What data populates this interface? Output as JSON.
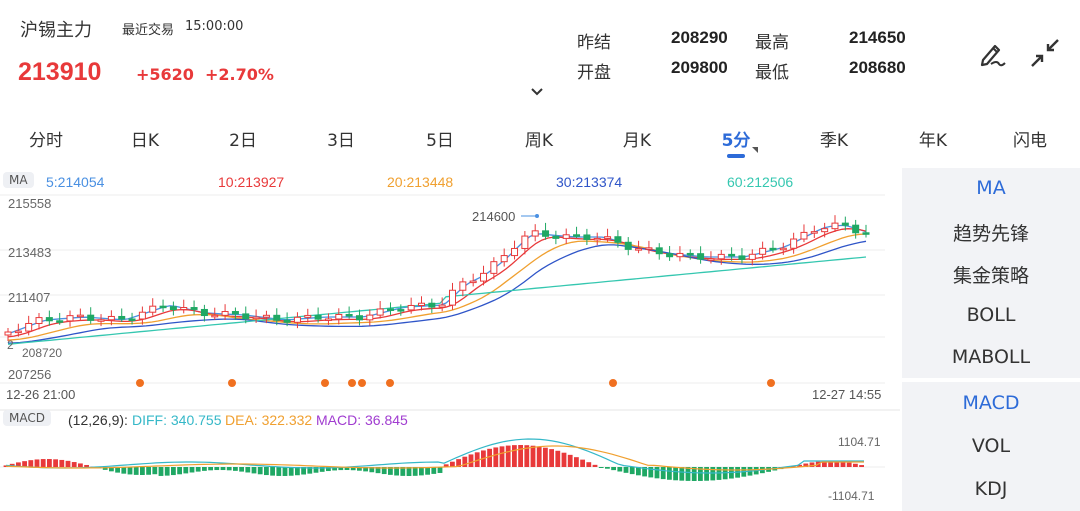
{
  "header": {
    "title": "沪锡主力",
    "trade_label": "最近交易",
    "trade_time": "15:00:00",
    "price": "213910",
    "change": "+5620",
    "change_pct": "+2.70%",
    "stats": [
      {
        "label": "昨结",
        "value": "208290"
      },
      {
        "label": "最高",
        "value": "214650"
      },
      {
        "label": "开盘",
        "value": "209800"
      },
      {
        "label": "最低",
        "value": "208680"
      }
    ],
    "icons": [
      "draw-pen-icon",
      "collapse-icon",
      "chevron-down-icon"
    ]
  },
  "tabs": [
    "分时",
    "日K",
    "2日",
    "3日",
    "5日",
    "周K",
    "月K",
    "5分",
    "季K",
    "年K",
    "闪电"
  ],
  "active_tab": "5分",
  "ma": {
    "tag": "MA",
    "items": [
      {
        "label": "5:214054",
        "color": "#4a90e2"
      },
      {
        "label": "10:213927",
        "color": "#e8393a"
      },
      {
        "label": "20:213448",
        "color": "#f0a030"
      },
      {
        "label": "30:213374",
        "color": "#2f55c8"
      },
      {
        "label": "60:212506",
        "color": "#35c7b0"
      }
    ]
  },
  "macd": {
    "tag": "MACD",
    "params": "(12,26,9):",
    "diff": "DIFF: 340.755",
    "dea": "DEA: 322.332",
    "macd": "MACD: 36.845",
    "diff_color": "#35b8c8",
    "dea_color": "#f0a030",
    "macd_color": "#a03cd0",
    "scale_top": "1104.71",
    "scale_bottom": "-1104.71"
  },
  "chart_data": {
    "type": "candlestick",
    "y_labels": [
      "215558",
      "213483",
      "211407",
      "207256"
    ],
    "ylim": [
      207256,
      215558
    ],
    "x_start": "12-26 21:00",
    "x_end": "12-27 14:55",
    "high_annotation": "214600",
    "low_annotation": "208720",
    "low_annotation_extra": "2",
    "candle_count": 84,
    "signal_marker_count": 8,
    "overlay_labels": [
      "趋势先锋",
      "集金策略"
    ]
  },
  "sidebar": {
    "group1": [
      "MA",
      "趋势先锋",
      "集金策略",
      "BOLL",
      "MABOLL"
    ],
    "group2": [
      "MACD",
      "VOL",
      "KDJ"
    ],
    "active1": "MA",
    "active2": "MACD"
  },
  "colors": {
    "up": "#e8393a",
    "down": "#1fa864",
    "accent": "#2d6bd8",
    "signal": "#f07020"
  }
}
